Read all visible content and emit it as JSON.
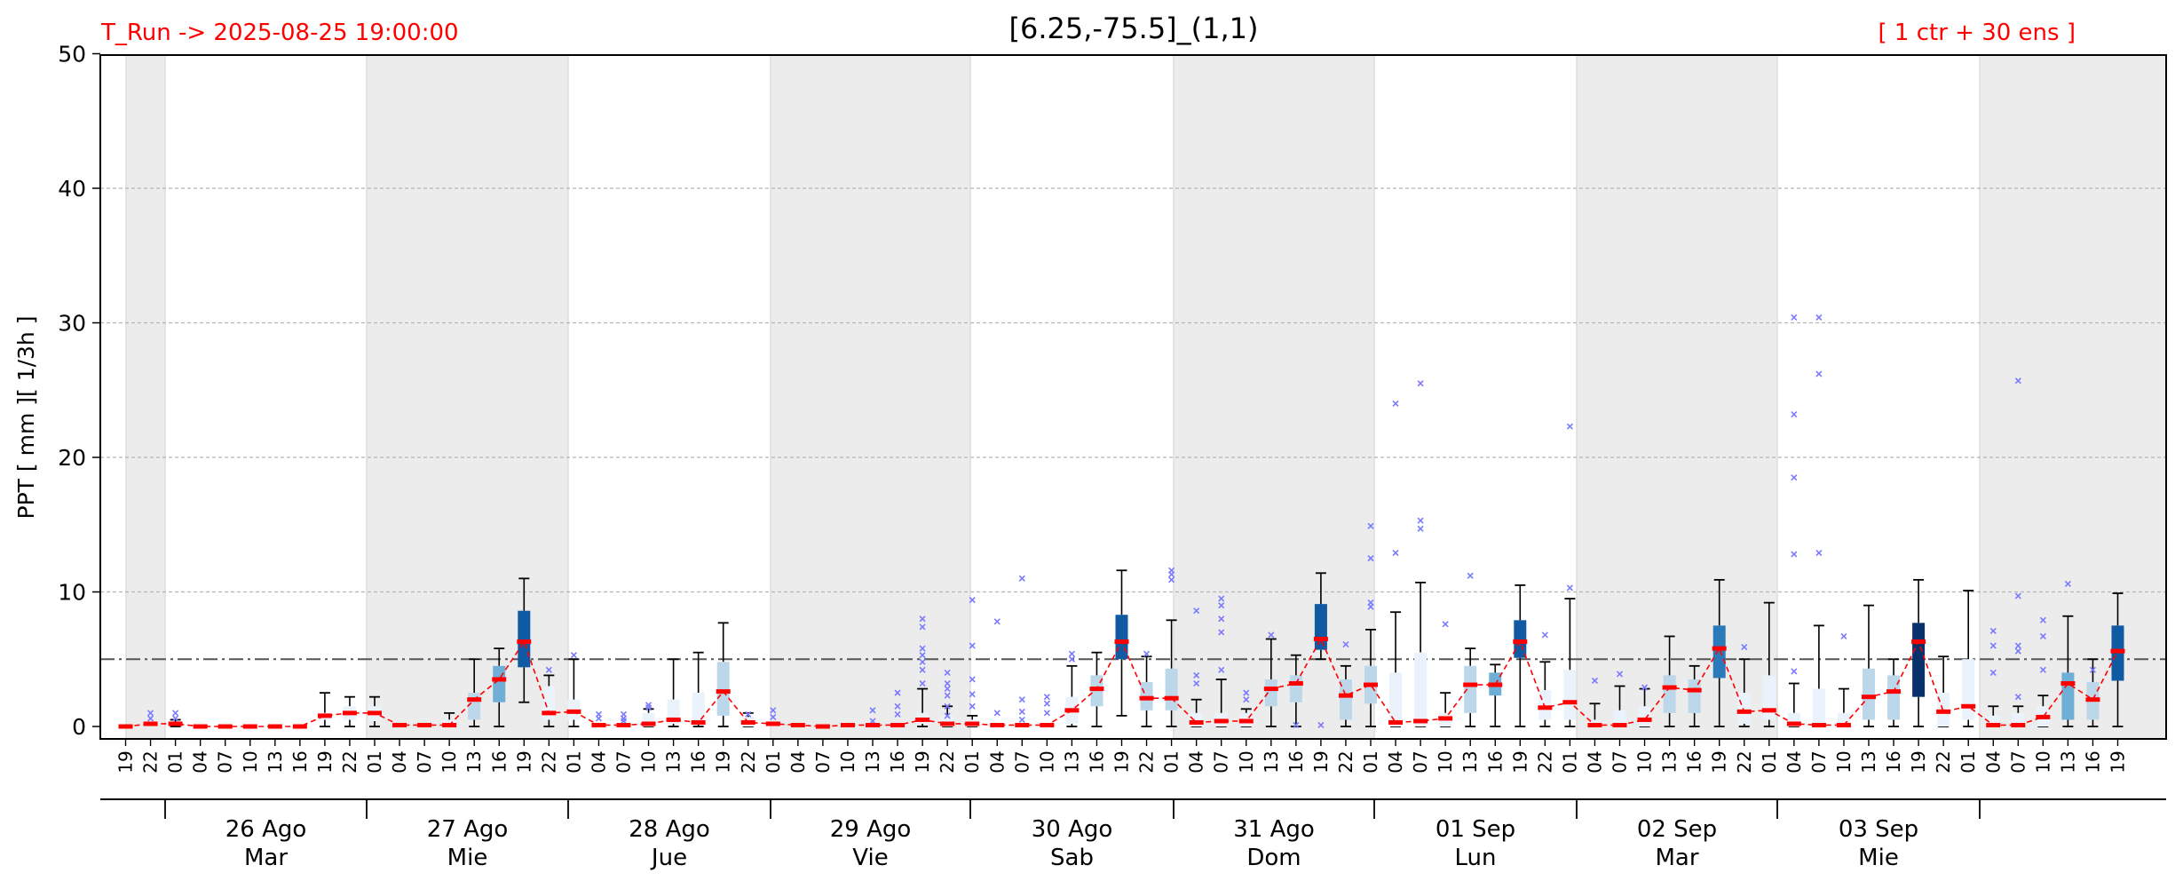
{
  "header": {
    "run_label": "T_Run -> 2025-08-25  19:00:00",
    "title": "[6.25,-75.5]_(1,1)",
    "members_label": "[ 1 ctr + 30 ens ]"
  },
  "chart_data": {
    "type": "box",
    "title": "[6.25,-75.5]_(1,1)",
    "ylabel": "PPT  [ mm ][ 1/3h ]",
    "ylim": [
      0,
      50
    ],
    "yticks": [
      0,
      10,
      20,
      30,
      40,
      50
    ],
    "grid": "horizontal dashed",
    "threshold": 5,
    "colors": {
      "median": "#ff0000",
      "trend": "#ff0000",
      "outlier": "#7a7aff",
      "threshold": "#555555",
      "night_band": "#ececec"
    },
    "hours": [
      "19",
      "22",
      "01",
      "04",
      "07",
      "10",
      "13",
      "16",
      "19",
      "22",
      "01",
      "04",
      "07",
      "10",
      "13",
      "16",
      "19",
      "22",
      "01",
      "04",
      "07",
      "10",
      "13",
      "16",
      "19",
      "22",
      "01",
      "04",
      "07",
      "10",
      "13",
      "16",
      "19",
      "22",
      "01",
      "04",
      "07",
      "10",
      "13",
      "16",
      "19",
      "22",
      "01",
      "04",
      "07",
      "10",
      "13",
      "16",
      "19",
      "22",
      "01",
      "04",
      "07",
      "10",
      "13",
      "16",
      "19",
      "22",
      "01",
      "04",
      "07",
      "10",
      "13",
      "16",
      "19",
      "22",
      "01",
      "04",
      "07",
      "10",
      "13",
      "16",
      "19",
      "22",
      "01",
      "04",
      "07",
      "10",
      "13",
      "16",
      "19"
    ],
    "day_groups": [
      {
        "date": "26 Ago",
        "weekday": "Mar"
      },
      {
        "date": "27 Ago",
        "weekday": "Mie"
      },
      {
        "date": "28 Ago",
        "weekday": "Jue"
      },
      {
        "date": "29 Ago",
        "weekday": "Vie"
      },
      {
        "date": "30 Ago",
        "weekday": "Sab"
      },
      {
        "date": "31 Ago",
        "weekday": "Dom"
      },
      {
        "date": "01 Sep",
        "weekday": "Lun"
      },
      {
        "date": "02 Sep",
        "weekday": "Mar"
      },
      {
        "date": "03 Sep",
        "weekday": "Mie"
      }
    ],
    "medians": [
      0,
      0.2,
      0.2,
      0,
      0,
      0,
      0,
      0,
      0.8,
      1.0,
      1.0,
      0.1,
      0.1,
      0.1,
      2.0,
      3.5,
      6.3,
      1.0,
      1.1,
      0.1,
      0.1,
      0.2,
      0.5,
      0.3,
      2.6,
      0.3,
      0.2,
      0.1,
      0,
      0.1,
      0.1,
      0.1,
      0.5,
      0.2,
      0.2,
      0.1,
      0.1,
      0.1,
      1.2,
      2.8,
      6.3,
      2.1,
      2.1,
      0.3,
      0.4,
      0.4,
      2.8,
      3.2,
      6.5,
      2.3,
      3.1,
      0.3,
      0.4,
      0.6,
      3.1,
      3.1,
      6.3,
      1.4,
      1.8,
      0.1,
      0.1,
      0.5,
      2.9,
      2.7,
      5.8,
      1.1,
      1.2,
      0.2,
      0.1,
      0.1,
      2.2,
      2.6,
      6.3,
      1.1,
      1.5,
      0.1,
      0.1,
      0.7,
      3.2,
      2.0,
      5.6
    ],
    "boxes": [
      {
        "i": 2,
        "q1": 0.1,
        "q3": 0.3,
        "lo": 0,
        "hi": 0.5,
        "level": "very-light"
      },
      {
        "i": 8,
        "q1": 0.5,
        "q3": 1.0,
        "lo": 0,
        "hi": 2.5,
        "level": "very-light"
      },
      {
        "i": 9,
        "q1": 0.5,
        "q3": 1.5,
        "lo": 0,
        "hi": 2.2,
        "level": "very-light"
      },
      {
        "i": 10,
        "q1": 0.4,
        "q3": 1.5,
        "lo": 0,
        "hi": 2.2,
        "level": "very-light"
      },
      {
        "i": 13,
        "q1": 0,
        "q3": 0.5,
        "lo": 0,
        "hi": 1.0,
        "level": "very-light"
      },
      {
        "i": 14,
        "q1": 0.5,
        "q3": 2.5,
        "lo": 0,
        "hi": 5.0,
        "level": "light"
      },
      {
        "i": 15,
        "q1": 1.8,
        "q3": 4.5,
        "lo": 0,
        "hi": 5.8,
        "level": "mid"
      },
      {
        "i": 16,
        "q1": 4.4,
        "q3": 8.6,
        "lo": 1.8,
        "hi": 11.0,
        "level": "dark"
      },
      {
        "i": 17,
        "q1": 0.5,
        "q3": 3.0,
        "lo": 0,
        "hi": 3.8,
        "level": "very-light"
      },
      {
        "i": 18,
        "q1": 0.5,
        "q3": 2.0,
        "lo": 0,
        "hi": 5.0,
        "level": "very-light"
      },
      {
        "i": 21,
        "q1": 0,
        "q3": 1.0,
        "lo": 0,
        "hi": 1.3,
        "level": "very-light"
      },
      {
        "i": 22,
        "q1": 0.2,
        "q3": 2.0,
        "lo": 0,
        "hi": 5.0,
        "level": "very-light"
      },
      {
        "i": 23,
        "q1": 0.2,
        "q3": 2.5,
        "lo": 0,
        "hi": 5.5,
        "level": "very-light"
      },
      {
        "i": 24,
        "q1": 0.8,
        "q3": 4.8,
        "lo": 0,
        "hi": 7.7,
        "level": "light"
      },
      {
        "i": 25,
        "q1": 0,
        "q3": 0.7,
        "lo": 0,
        "hi": 1.0,
        "level": "very-light"
      },
      {
        "i": 32,
        "q1": 0.2,
        "q3": 1.0,
        "lo": 0,
        "hi": 2.8,
        "level": "very-light"
      },
      {
        "i": 33,
        "q1": 0,
        "q3": 0.8,
        "lo": 0,
        "hi": 1.5,
        "level": "very-light"
      },
      {
        "i": 34,
        "q1": 0,
        "q3": 0.5,
        "lo": 0,
        "hi": 0.8,
        "level": "very-light"
      },
      {
        "i": 38,
        "q1": 0.2,
        "q3": 2.2,
        "lo": 0,
        "hi": 4.5,
        "level": "very-light"
      },
      {
        "i": 39,
        "q1": 1.5,
        "q3": 3.8,
        "lo": 0,
        "hi": 5.5,
        "level": "light"
      },
      {
        "i": 40,
        "q1": 5.0,
        "q3": 8.3,
        "lo": 0.8,
        "hi": 11.6,
        "level": "dark"
      },
      {
        "i": 41,
        "q1": 1.2,
        "q3": 3.3,
        "lo": 0,
        "hi": 5.2,
        "level": "light"
      },
      {
        "i": 42,
        "q1": 1.2,
        "q3": 4.3,
        "lo": 0,
        "hi": 7.9,
        "level": "light"
      },
      {
        "i": 43,
        "q1": 0,
        "q3": 1.0,
        "lo": 0,
        "hi": 2.0,
        "level": "very-light"
      },
      {
        "i": 44,
        "q1": 0,
        "q3": 1.0,
        "lo": 0,
        "hi": 3.5,
        "level": "very-light"
      },
      {
        "i": 45,
        "q1": 0,
        "q3": 1.0,
        "lo": 0,
        "hi": 1.3,
        "level": "very-light"
      },
      {
        "i": 46,
        "q1": 1.5,
        "q3": 3.5,
        "lo": 0,
        "hi": 6.5,
        "level": "light"
      },
      {
        "i": 47,
        "q1": 1.8,
        "q3": 3.8,
        "lo": 0,
        "hi": 5.3,
        "level": "light"
      },
      {
        "i": 48,
        "q1": 5.7,
        "q3": 9.1,
        "lo": 5.0,
        "hi": 11.4,
        "level": "dark"
      },
      {
        "i": 49,
        "q1": 0.5,
        "q3": 3.5,
        "lo": 0,
        "hi": 4.5,
        "level": "light"
      },
      {
        "i": 50,
        "q1": 1.7,
        "q3": 4.5,
        "lo": 0,
        "hi": 7.2,
        "level": "light"
      },
      {
        "i": 51,
        "q1": 0,
        "q3": 4.0,
        "lo": 0,
        "hi": 8.5,
        "level": "very-light"
      },
      {
        "i": 52,
        "q1": 0,
        "q3": 5.5,
        "lo": 0,
        "hi": 10.7,
        "level": "very-light"
      },
      {
        "i": 53,
        "q1": 0,
        "q3": 1.0,
        "lo": 0,
        "hi": 2.5,
        "level": "very-light"
      },
      {
        "i": 54,
        "q1": 1.0,
        "q3": 4.5,
        "lo": 0,
        "hi": 5.8,
        "level": "light"
      },
      {
        "i": 55,
        "q1": 2.3,
        "q3": 4.0,
        "lo": 0,
        "hi": 4.6,
        "level": "mid"
      },
      {
        "i": 56,
        "q1": 5.1,
        "q3": 7.9,
        "lo": 0,
        "hi": 10.5,
        "level": "dark"
      },
      {
        "i": 57,
        "q1": 0.5,
        "q3": 2.7,
        "lo": 0,
        "hi": 4.8,
        "level": "very-light"
      },
      {
        "i": 58,
        "q1": 0.5,
        "q3": 4.2,
        "lo": 0,
        "hi": 9.5,
        "level": "very-light"
      },
      {
        "i": 59,
        "q1": 0,
        "q3": 0.5,
        "lo": 0,
        "hi": 1.7,
        "level": "very-light"
      },
      {
        "i": 60,
        "q1": 0,
        "q3": 1.2,
        "lo": 0,
        "hi": 3.0,
        "level": "very-light"
      },
      {
        "i": 61,
        "q1": 0,
        "q3": 1.5,
        "lo": 0,
        "hi": 2.8,
        "level": "very-light"
      },
      {
        "i": 62,
        "q1": 1.0,
        "q3": 3.8,
        "lo": 0,
        "hi": 6.7,
        "level": "light"
      },
      {
        "i": 63,
        "q1": 1.0,
        "q3": 3.5,
        "lo": 0,
        "hi": 4.5,
        "level": "light"
      },
      {
        "i": 64,
        "q1": 3.6,
        "q3": 7.5,
        "lo": 0,
        "hi": 10.9,
        "level": "dark-mid"
      },
      {
        "i": 65,
        "q1": 0.2,
        "q3": 2.5,
        "lo": 0,
        "hi": 5.0,
        "level": "very-light"
      },
      {
        "i": 66,
        "q1": 0.5,
        "q3": 3.8,
        "lo": 0,
        "hi": 9.2,
        "level": "very-light"
      },
      {
        "i": 67,
        "q1": 0,
        "q3": 1.0,
        "lo": 0,
        "hi": 3.2,
        "level": "very-light"
      },
      {
        "i": 68,
        "q1": 0,
        "q3": 2.8,
        "lo": 0,
        "hi": 7.5,
        "level": "very-light"
      },
      {
        "i": 69,
        "q1": 0,
        "q3": 1.0,
        "lo": 0,
        "hi": 2.8,
        "level": "very-light"
      },
      {
        "i": 70,
        "q1": 0.5,
        "q3": 4.3,
        "lo": 0,
        "hi": 9.0,
        "level": "light"
      },
      {
        "i": 71,
        "q1": 0.5,
        "q3": 3.8,
        "lo": 0,
        "hi": 5.0,
        "level": "light"
      },
      {
        "i": 72,
        "q1": 2.2,
        "q3": 7.7,
        "lo": 0,
        "hi": 10.9,
        "level": "darkest"
      },
      {
        "i": 73,
        "q1": 0,
        "q3": 2.5,
        "lo": 0,
        "hi": 5.2,
        "level": "very-light"
      },
      {
        "i": 74,
        "q1": 0.5,
        "q3": 5.0,
        "lo": 0,
        "hi": 10.1,
        "level": "very-light"
      },
      {
        "i": 75,
        "q1": 0,
        "q3": 0.8,
        "lo": 0,
        "hi": 1.5,
        "level": "very-light"
      },
      {
        "i": 76,
        "q1": 0,
        "q3": 1.0,
        "lo": 0,
        "hi": 1.5,
        "level": "very-light"
      },
      {
        "i": 77,
        "q1": 0,
        "q3": 1.5,
        "lo": 0,
        "hi": 2.3,
        "level": "very-light"
      },
      {
        "i": 78,
        "q1": 0.5,
        "q3": 4.0,
        "lo": 0,
        "hi": 8.2,
        "level": "mid"
      },
      {
        "i": 79,
        "q1": 0.5,
        "q3": 3.3,
        "lo": 0,
        "hi": 5.0,
        "level": "light"
      },
      {
        "i": 80,
        "q1": 3.4,
        "q3": 7.5,
        "lo": 0,
        "hi": 9.9,
        "level": "dark"
      }
    ],
    "outliers": [
      {
        "i": 1,
        "v": [
          0.6,
          1.0
        ]
      },
      {
        "i": 2,
        "v": [
          0.6,
          1.0
        ]
      },
      {
        "i": 17,
        "v": [
          4.2
        ]
      },
      {
        "i": 18,
        "v": [
          5.3
        ]
      },
      {
        "i": 19,
        "v": [
          0.6,
          0.9
        ]
      },
      {
        "i": 20,
        "v": [
          0.4,
          0.6,
          0.9
        ]
      },
      {
        "i": 21,
        "v": [
          1.4,
          1.6
        ]
      },
      {
        "i": 25,
        "v": [
          0.9
        ]
      },
      {
        "i": 26,
        "v": [
          0.7,
          1.2
        ]
      },
      {
        "i": 30,
        "v": [
          0.4,
          1.2
        ]
      },
      {
        "i": 31,
        "v": [
          0.9,
          1.5,
          2.5
        ]
      },
      {
        "i": 32,
        "v": [
          3.2,
          4.2,
          4.8,
          5.3,
          5.8,
          7.4,
          8.0
        ]
      },
      {
        "i": 33,
        "v": [
          0.8,
          1.5,
          2.3,
          2.8,
          3.2,
          4.0
        ]
      },
      {
        "i": 34,
        "v": [
          1.5,
          2.4,
          3.5,
          6.0,
          9.4
        ]
      },
      {
        "i": 35,
        "v": [
          1.0,
          7.8
        ]
      },
      {
        "i": 36,
        "v": [
          0.5,
          1.1,
          2.0,
          11.0
        ]
      },
      {
        "i": 37,
        "v": [
          1.0,
          1.7,
          2.2
        ]
      },
      {
        "i": 38,
        "v": [
          5.0,
          5.4
        ]
      },
      {
        "i": 41,
        "v": [
          5.4
        ]
      },
      {
        "i": 42,
        "v": [
          10.9,
          11.3,
          11.6
        ]
      },
      {
        "i": 43,
        "v": [
          3.2,
          3.8,
          8.6
        ]
      },
      {
        "i": 44,
        "v": [
          4.2,
          7.0,
          8.0,
          9.0,
          9.5
        ]
      },
      {
        "i": 45,
        "v": [
          2.0,
          2.5
        ]
      },
      {
        "i": 46,
        "v": [
          6.8
        ]
      },
      {
        "i": 47,
        "v": [
          0.1
        ]
      },
      {
        "i": 48,
        "v": [
          0.1
        ]
      },
      {
        "i": 49,
        "v": [
          6.1
        ]
      },
      {
        "i": 50,
        "v": [
          8.9,
          9.2,
          12.5,
          14.9
        ]
      },
      {
        "i": 51,
        "v": [
          12.9,
          24.0
        ]
      },
      {
        "i": 52,
        "v": [
          14.7,
          15.3,
          25.5
        ]
      },
      {
        "i": 53,
        "v": [
          7.6
        ]
      },
      {
        "i": 54,
        "v": [
          11.2
        ]
      },
      {
        "i": 57,
        "v": [
          6.8
        ]
      },
      {
        "i": 58,
        "v": [
          10.3,
          22.3
        ]
      },
      {
        "i": 59,
        "v": [
          3.4
        ]
      },
      {
        "i": 60,
        "v": [
          3.9
        ]
      },
      {
        "i": 61,
        "v": [
          2.9
        ]
      },
      {
        "i": 65,
        "v": [
          5.9
        ]
      },
      {
        "i": 67,
        "v": [
          4.1,
          12.8,
          18.5,
          23.2,
          30.4
        ]
      },
      {
        "i": 68,
        "v": [
          12.9,
          26.2,
          30.4
        ]
      },
      {
        "i": 69,
        "v": [
          6.7
        ]
      },
      {
        "i": 75,
        "v": [
          4.0,
          6.0,
          7.1
        ]
      },
      {
        "i": 76,
        "v": [
          2.2,
          5.6,
          6.0,
          9.7,
          25.7
        ]
      },
      {
        "i": 77,
        "v": [
          4.2,
          6.7,
          7.9
        ]
      },
      {
        "i": 78,
        "v": [
          10.6
        ]
      },
      {
        "i": 79,
        "v": [
          4.2
        ]
      }
    ]
  }
}
